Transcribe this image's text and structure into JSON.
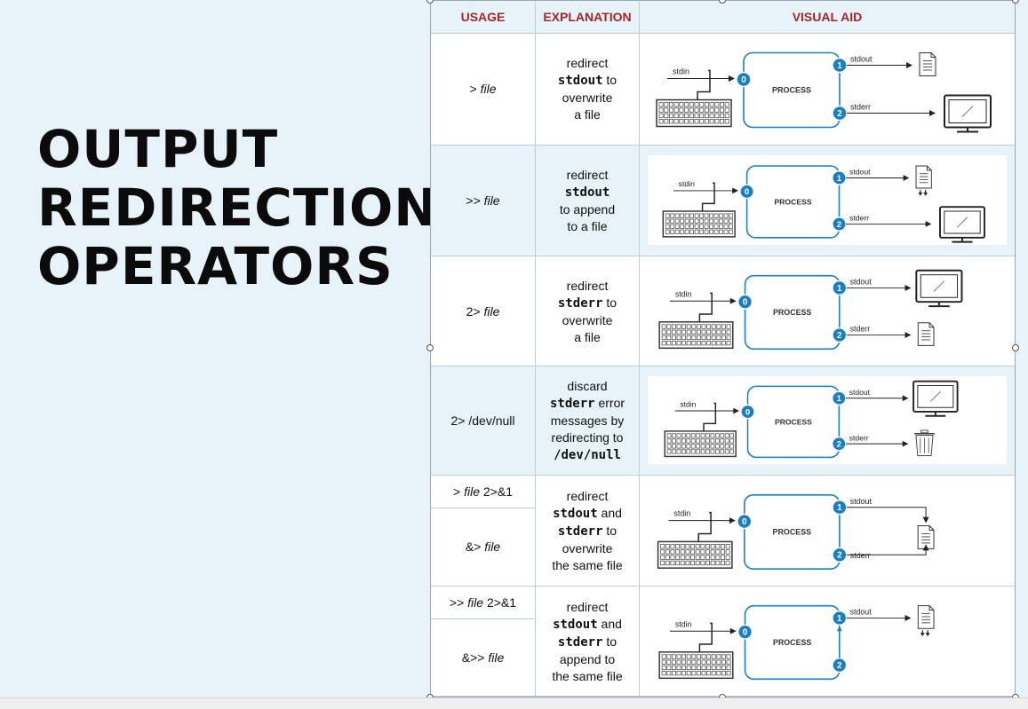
{
  "slide": {
    "title_lines": [
      "OUTPUT",
      "REDIRECTION",
      "OPERATORS"
    ]
  },
  "table": {
    "headers": {
      "usage": "USAGE",
      "explanation": "EXPLANATION",
      "visual": "VISUAL AID"
    },
    "rows": [
      {
        "usage": [
          {
            "op": ">",
            "arg": "file",
            "suffix": ""
          }
        ],
        "explanation": [
          {
            "t": "redirect",
            "mono": false
          },
          {
            "t": "stdout",
            "mono": true
          },
          {
            "t": " to",
            "mono": false
          },
          {
            "t": "overwrite",
            "mono": false
          },
          {
            "t": "a file",
            "mono": false
          }
        ],
        "visual": {
          "stdout_target": "file",
          "stderr_target": "screen",
          "append": false
        }
      },
      {
        "usage": [
          {
            "op": ">>",
            "arg": "file",
            "suffix": ""
          }
        ],
        "explanation": [
          {
            "t": "redirect",
            "mono": false
          },
          {
            "t": "stdout",
            "mono": true
          },
          {
            "t": "to append",
            "mono": false
          },
          {
            "t": "to a file",
            "mono": false
          }
        ],
        "visual": {
          "stdout_target": "file",
          "stderr_target": "screen",
          "append": true
        }
      },
      {
        "usage": [
          {
            "op": "2>",
            "arg": "file",
            "suffix": ""
          }
        ],
        "explanation": [
          {
            "t": "redirect",
            "mono": false
          },
          {
            "t": "stderr",
            "mono": true
          },
          {
            "t": " to",
            "mono": false
          },
          {
            "t": "overwrite",
            "mono": false
          },
          {
            "t": "a file",
            "mono": false
          }
        ],
        "visual": {
          "stdout_target": "screen",
          "stderr_target": "file",
          "append": false
        }
      },
      {
        "usage": [
          {
            "op": "2> /dev/null",
            "arg": "",
            "suffix": ""
          }
        ],
        "explanation": [
          {
            "t": "discard",
            "mono": false
          },
          {
            "t": "stderr",
            "mono": true
          },
          {
            "t": " error",
            "mono": false
          },
          {
            "t": "messages by",
            "mono": false
          },
          {
            "t": "redirecting to",
            "mono": false
          },
          {
            "t": "/dev/null",
            "mono": true
          }
        ],
        "visual": {
          "stdout_target": "screen",
          "stderr_target": "trash",
          "append": false
        }
      },
      {
        "usage": [
          {
            "op": ">",
            "arg": "file",
            "suffix": " 2>&1"
          },
          {
            "op": "&>",
            "arg": "file",
            "suffix": ""
          }
        ],
        "explanation": [
          {
            "t": "redirect",
            "mono": false
          },
          {
            "t": "stdout",
            "mono": true
          },
          {
            "t": " and",
            "mono": false
          },
          {
            "t": "stderr",
            "mono": true
          },
          {
            "t": " to",
            "mono": false
          },
          {
            "t": "overwrite",
            "mono": false
          },
          {
            "t": "the same file",
            "mono": false
          }
        ],
        "visual": {
          "stdout_target": "file",
          "stderr_target": "merge",
          "append": false
        }
      },
      {
        "usage": [
          {
            "op": ">>",
            "arg": "file",
            "suffix": " 2>&1"
          },
          {
            "op": "&>>",
            "arg": "file",
            "suffix": ""
          }
        ],
        "explanation": [
          {
            "t": "redirect",
            "mono": false
          },
          {
            "t": "stdout",
            "mono": true
          },
          {
            "t": " and",
            "mono": false
          },
          {
            "t": "stderr",
            "mono": true
          },
          {
            "t": " to",
            "mono": false
          },
          {
            "t": "append to",
            "mono": false
          },
          {
            "t": "the same file",
            "mono": false
          }
        ],
        "visual": {
          "stdout_target": "file",
          "stderr_target": "merge-up",
          "append": true
        }
      }
    ]
  },
  "diagram_labels": {
    "stdin": "stdin",
    "stdout": "stdout",
    "stderr": "stderr",
    "process": "PROCESS",
    "fd0": "0",
    "fd1": "1",
    "fd2": "2"
  },
  "colors": {
    "title": "#0b0b0b",
    "header_text": "#a3262a",
    "fd_badge": "#1a7ec4",
    "process_border": "#1a7ec4",
    "background": "#e7f3f8"
  }
}
